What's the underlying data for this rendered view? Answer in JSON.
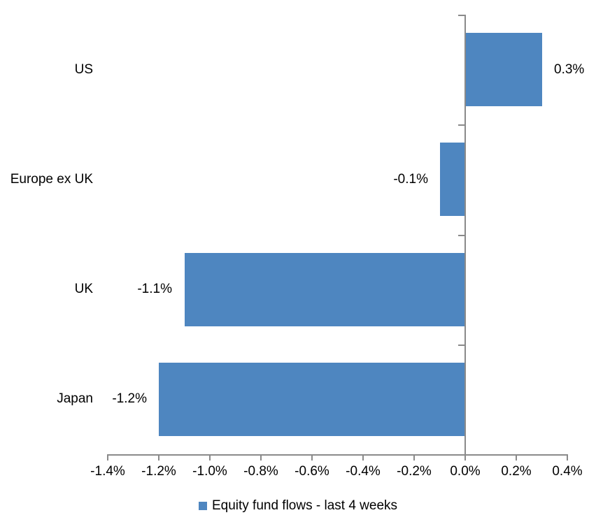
{
  "chart_data": {
    "type": "bar",
    "orientation": "horizontal",
    "title": "",
    "xlabel": "",
    "ylabel": "",
    "categories": [
      "US",
      "Europe ex UK",
      "UK",
      "Japan"
    ],
    "values": [
      0.3,
      -0.1,
      -1.1,
      -1.2
    ],
    "value_labels": [
      "0.3%",
      "-0.1%",
      "-1.1%",
      "-1.2%"
    ],
    "series_name": "Equity fund flows - last 4 weeks",
    "xlim": [
      -1.4,
      0.4
    ],
    "x_tick_values": [
      -1.4,
      -1.2,
      -1.0,
      -0.8,
      -0.6,
      -0.4,
      -0.2,
      0.0,
      0.2,
      0.4
    ],
    "x_tick_labels": [
      "-1.4%",
      "-1.2%",
      "-1.0%",
      "-0.8%",
      "-0.6%",
      "-0.4%",
      "-0.2%",
      "0.0%",
      "0.2%",
      "0.4%"
    ],
    "grid": false,
    "legend_position": "bottom",
    "colors": {
      "bar": "#4e86c0",
      "axis": "#8a8a8a",
      "text": "#000000",
      "background": "#ffffff"
    }
  }
}
